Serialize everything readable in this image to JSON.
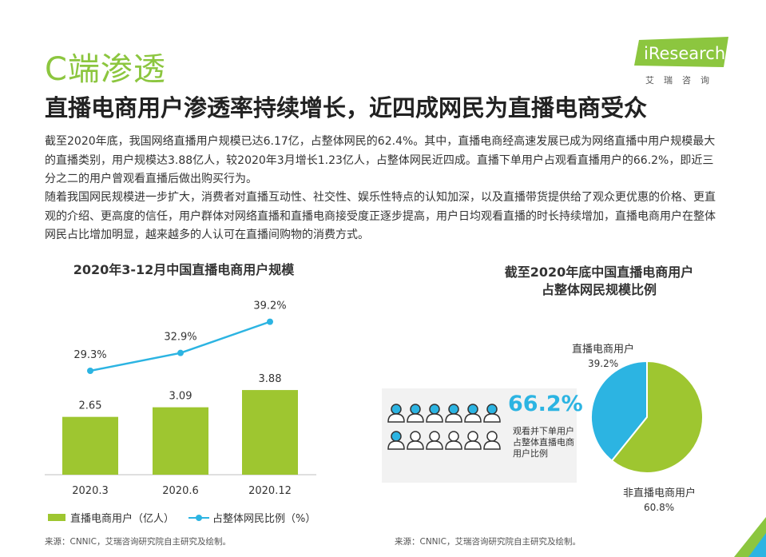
{
  "header": {
    "section_label": "C端渗透",
    "headline": "直播电商用户渗透率持续增长，近四成网民为直播电商受众"
  },
  "logo": {
    "brand": "iResearch",
    "sub": "艾瑞咨询"
  },
  "body": {
    "p1": "截至2020年底，我国网络直播用户规模已达6.17亿，占整体网民的62.4%。其中，直播电商经高速发展已成为网络直播中用户规模最大的直播类别，用户规模达3.88亿人，较2020年3月增长1.23亿人，占整体网民近四成。直播下单用户占观看直播用户的66.2%，即近三分之二的用户曾观看直播后做出购买行为。",
    "p2": "随着我国网民规模进一步扩大，消费者对直播互动性、社交性、娱乐性特点的认知加深，以及直播带货提供给了观众更优惠的价格、更直观的介绍、更高度的信任，用户群体对网络直播和直播电商接受度正逐步提高，用户日均观看直播的时长持续增加，直播电商用户在整体网民占比增加明显，越来越多的人认可在直播间购物的消费方式。"
  },
  "chart1": {
    "title": "2020年3-12月中国直播电商用户规模",
    "legend_bar": "直播电商用户（亿人）",
    "legend_line": "占整体网民比例（%）"
  },
  "chart2": {
    "title_line1": "截至2020年底中国直播电商用户",
    "title_line2": "占整体网民规模比例",
    "pct_big": "66.2%",
    "pct_desc": "观看并下单用户占整体直播电商用户比例",
    "slice1_label": "直播电商用户",
    "slice1_value": "39.2%",
    "slice2_label": "非直播电商用户",
    "slice2_value": "60.8%",
    "people_filled": 7,
    "people_total": 12
  },
  "footnotes": {
    "fn1": "来源：CNNIC，艾瑞咨询研究院自主研究及绘制。",
    "fn2": "来源：CNNIC，艾瑞咨询研究院自主研究及绘制。"
  },
  "colors": {
    "green": "#9ec630",
    "blue": "#2cb4e2",
    "accent_green": "#8cc63f"
  },
  "chart_data": [
    {
      "type": "bar",
      "categories": [
        "2020.3",
        "2020.6",
        "2020.12"
      ],
      "series": [
        {
          "name": "直播电商用户（亿人）",
          "values": [
            2.65,
            3.09,
            3.88
          ]
        },
        {
          "name": "占整体网民比例（%）",
          "values": [
            29.3,
            32.9,
            39.2
          ]
        }
      ],
      "bar_labels": [
        "2.65",
        "3.09",
        "3.88"
      ],
      "line_labels": [
        "29.3%",
        "32.9%",
        "39.2%"
      ]
    },
    {
      "type": "pie",
      "labels": [
        "直播电商用户",
        "非直播电商用户"
      ],
      "values": [
        39.2,
        60.8
      ]
    }
  ]
}
